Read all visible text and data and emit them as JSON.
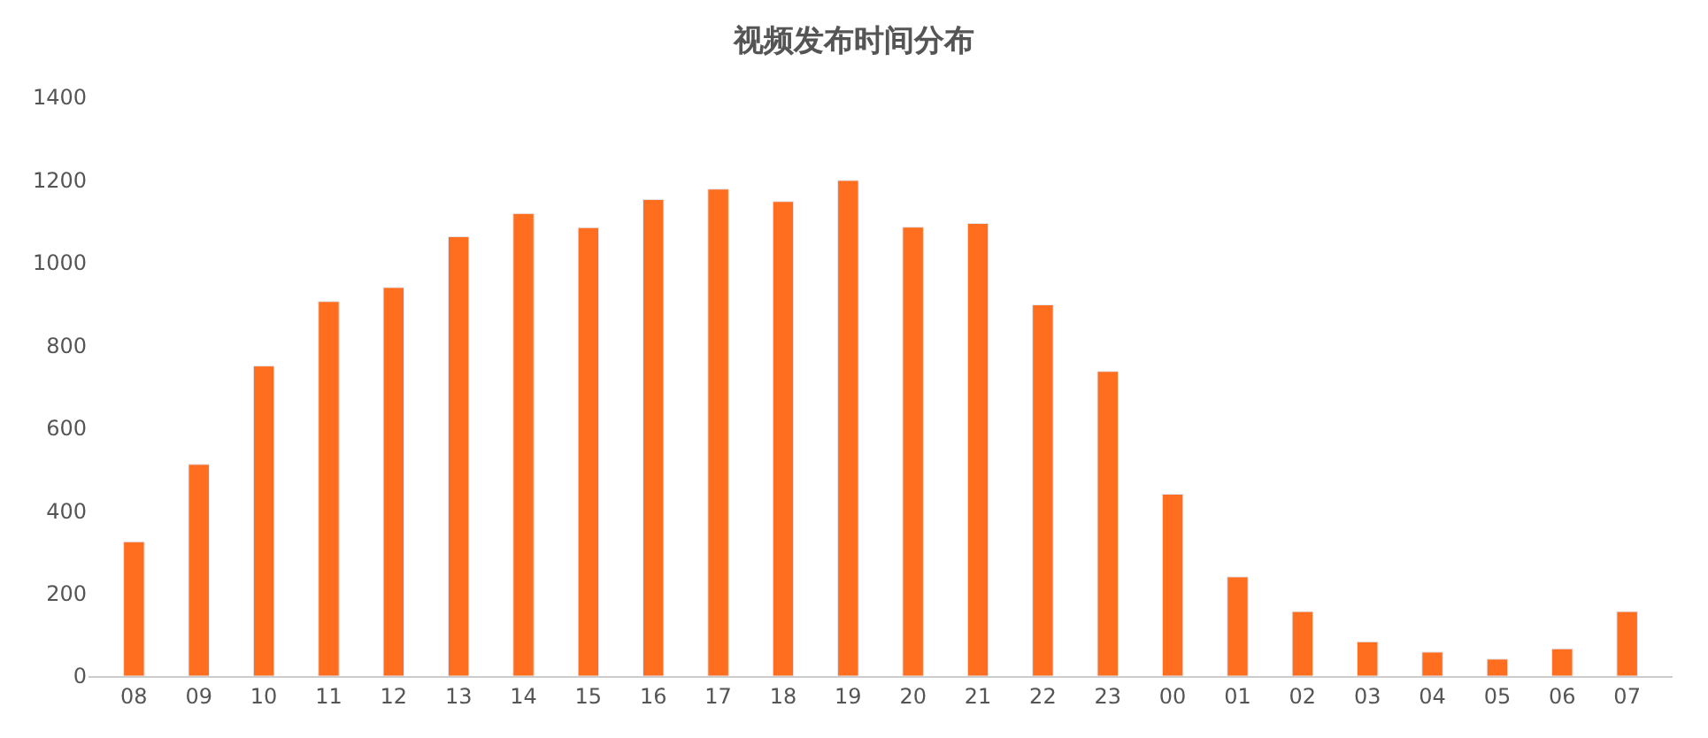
{
  "chart_data": {
    "type": "bar",
    "title": "视频发布时间分布",
    "categories": [
      "08",
      "09",
      "10",
      "11",
      "12",
      "13",
      "14",
      "15",
      "16",
      "17",
      "18",
      "19",
      "20",
      "21",
      "22",
      "23",
      "00",
      "01",
      "02",
      "03",
      "04",
      "05",
      "06",
      "07"
    ],
    "values": [
      325,
      512,
      750,
      906,
      940,
      1063,
      1119,
      1085,
      1153,
      1178,
      1148,
      1199,
      1086,
      1095,
      898,
      737,
      440,
      240,
      156,
      83,
      58,
      41,
      66,
      156
    ],
    "color": "#ff6d1f",
    "ylim": [
      0,
      1400
    ],
    "yticks": [
      0,
      200,
      400,
      600,
      800,
      1000,
      1200,
      1400
    ]
  }
}
